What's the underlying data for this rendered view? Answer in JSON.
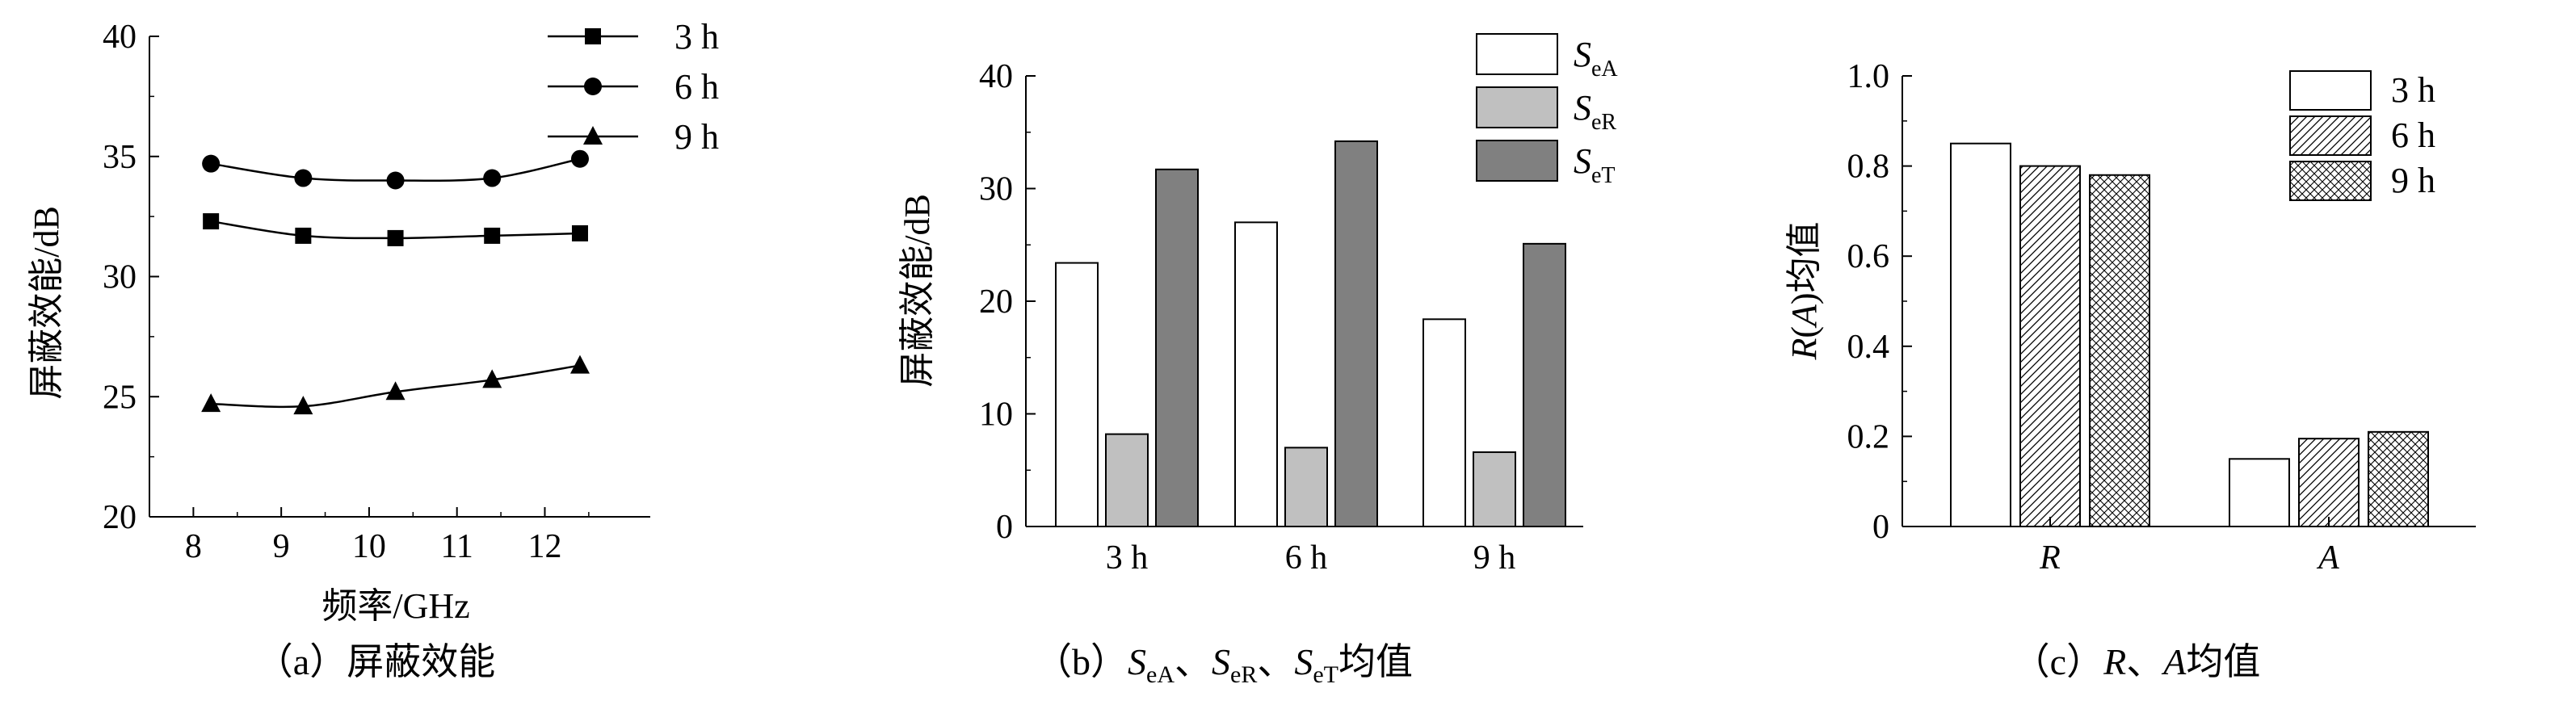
{
  "chart_data": [
    {
      "type": "line",
      "caption": "（a）屏蔽效能",
      "xlabel": "频率/GHz",
      "ylabel": "屏蔽效能/dB",
      "xlim": [
        7.5,
        13.2
      ],
      "ylim": [
        20,
        40
      ],
      "xticks": [
        "8",
        "9",
        "10",
        "11",
        "12"
      ],
      "yticks": [
        "20",
        "25",
        "30",
        "35",
        "40"
      ],
      "x": [
        8.2,
        9.25,
        10.3,
        11.4,
        12.4
      ],
      "series": [
        {
          "name": "3 h",
          "marker": "square",
          "values": [
            32.3,
            31.7,
            31.6,
            31.7,
            31.8
          ]
        },
        {
          "name": "6 h",
          "marker": "circle",
          "values": [
            34.7,
            34.1,
            34.0,
            34.1,
            34.9
          ]
        },
        {
          "name": "9 h",
          "marker": "triangle",
          "values": [
            24.7,
            24.6,
            25.2,
            25.7,
            26.3
          ]
        }
      ],
      "legend_position": "top-right"
    },
    {
      "type": "bar",
      "caption_parts": [
        "（b）",
        "S",
        "eA",
        "、",
        "S",
        "eR",
        "、",
        "S",
        "eT",
        "均值"
      ],
      "ylabel": "屏蔽效能/dB",
      "ylim": [
        0,
        40
      ],
      "yticks": [
        "0",
        "10",
        "20",
        "30",
        "40"
      ],
      "categories": [
        "3 h",
        "6 h",
        "9 h"
      ],
      "series": [
        {
          "name": "S",
          "sub": "eA",
          "color": "#ffffff",
          "values": [
            23.4,
            27.0,
            18.4
          ]
        },
        {
          "name": "S",
          "sub": "eR",
          "color": "#c0c0c0",
          "values": [
            8.2,
            7.0,
            6.6
          ]
        },
        {
          "name": "S",
          "sub": "eT",
          "color": "#808080",
          "values": [
            31.7,
            34.2,
            25.1
          ]
        }
      ],
      "legend_position": "top-right"
    },
    {
      "type": "bar",
      "caption_parts": [
        "（c）",
        "R",
        "、",
        "A",
        "均值"
      ],
      "ylabel_parts": [
        "R",
        "(",
        "A",
        ")均值"
      ],
      "ylim": [
        0,
        1.0
      ],
      "yticks": [
        "0",
        "0.2",
        "0.4",
        "0.6",
        "0.8",
        "1.0"
      ],
      "categories": [
        "R",
        "A"
      ],
      "series": [
        {
          "name": "3 h",
          "pattern": "none",
          "values": [
            0.85,
            0.15
          ]
        },
        {
          "name": "6 h",
          "pattern": "diagonal-hatch",
          "values": [
            0.8,
            0.195
          ]
        },
        {
          "name": "9 h",
          "pattern": "crosshatch",
          "values": [
            0.78,
            0.21
          ]
        }
      ],
      "legend_position": "top-right"
    }
  ]
}
